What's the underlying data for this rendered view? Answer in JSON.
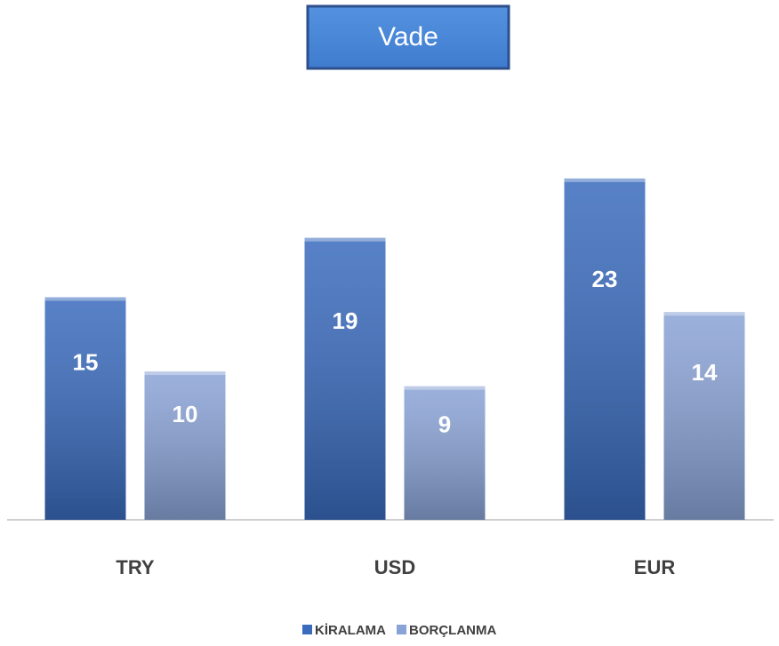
{
  "chart_data": {
    "type": "bar",
    "title": "Vade",
    "categories": [
      "TRY",
      "USD",
      "EUR"
    ],
    "series": [
      {
        "name": "KİRALAMA",
        "color": "#3a6bbd",
        "values": [
          15,
          19,
          23
        ]
      },
      {
        "name": "BORÇLANMA",
        "color": "#8aa3d6",
        "values": [
          10,
          9,
          14
        ]
      }
    ],
    "legend": "bottom"
  }
}
